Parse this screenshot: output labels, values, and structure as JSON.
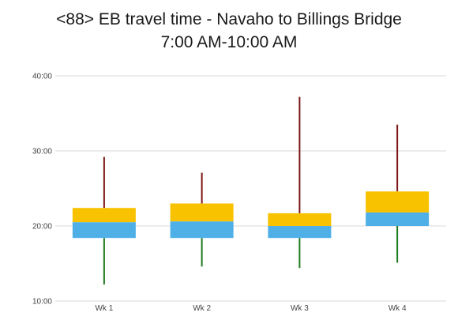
{
  "chart_data": {
    "type": "box",
    "title_line1": "<88> EB travel time - Navaho to Billings Bridge",
    "title_line2": "7:00 AM-10:00 AM",
    "categories": [
      "Wk 1",
      "Wk 2",
      "Wk 3",
      "Wk 4"
    ],
    "y_ticks": [
      "10:00",
      "20:00",
      "30:00",
      "40:00"
    ],
    "ylim_minutes": [
      10,
      40
    ],
    "grid": true,
    "series": [
      {
        "min": 12.2,
        "q1": 18.4,
        "median": 20.5,
        "q3": 22.4,
        "max": 29.2
      },
      {
        "min": 14.6,
        "q1": 18.4,
        "median": 20.6,
        "q3": 23.0,
        "max": 27.1
      },
      {
        "min": 14.4,
        "q1": 18.4,
        "median": 20.0,
        "q3": 21.7,
        "max": 37.2
      },
      {
        "min": 15.1,
        "q1": 20.0,
        "median": 21.8,
        "q3": 24.6,
        "max": 33.5
      }
    ],
    "colors": {
      "upper_box": "#F9C200",
      "lower_box": "#4FB0E8",
      "upper_whisker": "#7B1414",
      "lower_whisker": "#1E7A1E",
      "grid": "#D9D9D9"
    }
  }
}
